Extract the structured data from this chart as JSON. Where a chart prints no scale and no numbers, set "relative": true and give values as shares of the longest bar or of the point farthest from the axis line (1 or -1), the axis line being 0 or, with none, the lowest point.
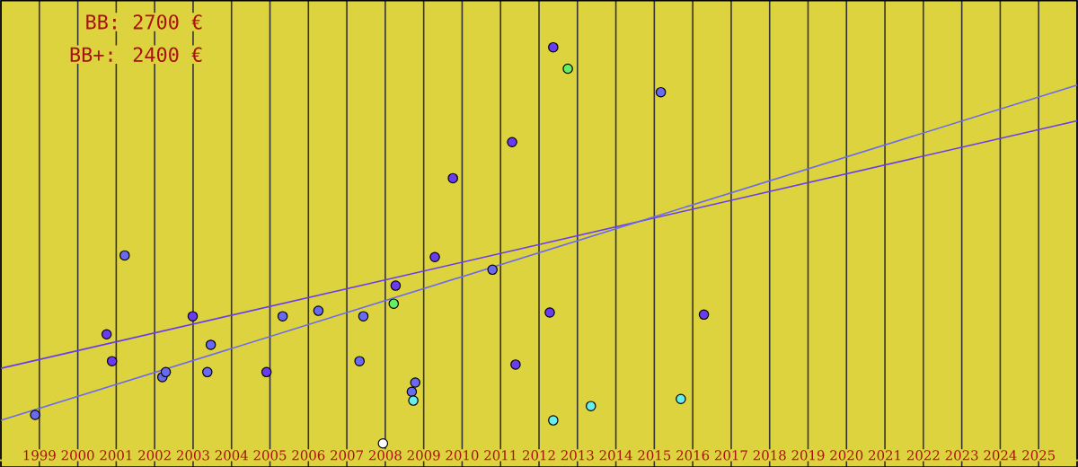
{
  "chart_data": {
    "type": "scatter",
    "relative": true,
    "grid": "x",
    "annotations": [
      "BB: 2700 €",
      "BB+: 2400 €"
    ],
    "xlim": [
      1998,
      2026
    ],
    "xticks": [
      {
        "value": 1998,
        "label": null
      },
      1999,
      2000,
      2001,
      2002,
      2003,
      2004,
      2005,
      2006,
      2007,
      2008,
      2009,
      2010,
      2011,
      2012,
      2013,
      2014,
      2015,
      2016,
      2017,
      2018,
      2019,
      2020,
      2021,
      2022,
      2023,
      2024,
      2025,
      {
        "value": 2026,
        "label": null
      }
    ],
    "series": [
      {
        "marker": "circle",
        "color": "#6a6af0",
        "x": [
          1998.89,
          2001.22,
          2002.2,
          2002.29,
          2003.46,
          2003.37,
          2005.33,
          2006.26,
          2007.43,
          2007.33,
          2008.78,
          2008.69,
          2010.79,
          2015.17
        ],
        "values": [
          0.124,
          0.504,
          0.214,
          0.226,
          0.291,
          0.226,
          0.359,
          0.372,
          0.359,
          0.252,
          0.201,
          0.179,
          0.47,
          0.893
        ]
      },
      {
        "marker": "circle",
        "color": "#6a3cf0",
        "x": [
          2000.75,
          2000.89,
          2002.99,
          2004.91,
          2008.27,
          2009.29,
          2009.76,
          2011.3,
          2011.39,
          2012.37,
          2012.28,
          2016.29
        ],
        "values": [
          0.316,
          0.252,
          0.359,
          0.226,
          0.432,
          0.5,
          0.688,
          0.774,
          0.244,
          1,
          0.368,
          0.363
        ]
      },
      {
        "marker": "circle",
        "color": "#66ee66",
        "x": [
          2008.22,
          2012.75
        ],
        "values": [
          0.389,
          0.949
        ]
      },
      {
        "marker": "circle",
        "color": "#66eeee",
        "x": [
          2008.73,
          2012.37,
          2013.35,
          2015.69
        ],
        "values": [
          0.158,
          0.111,
          0.145,
          0.162
        ]
      },
      {
        "marker": "circle",
        "color": "#ffffff",
        "x": [
          2007.94
        ],
        "values": [
          0.056
        ]
      },
      {
        "type": "line",
        "marker": "none",
        "color": "#6a3cf0",
        "x": [
          1998,
          2026
        ],
        "values": [
          0.235,
          0.825
        ]
      },
      {
        "type": "line",
        "marker": "none",
        "color": "#6a6af0",
        "x": [
          1998,
          2026
        ],
        "values": [
          0.111,
          0.91
        ]
      }
    ]
  }
}
